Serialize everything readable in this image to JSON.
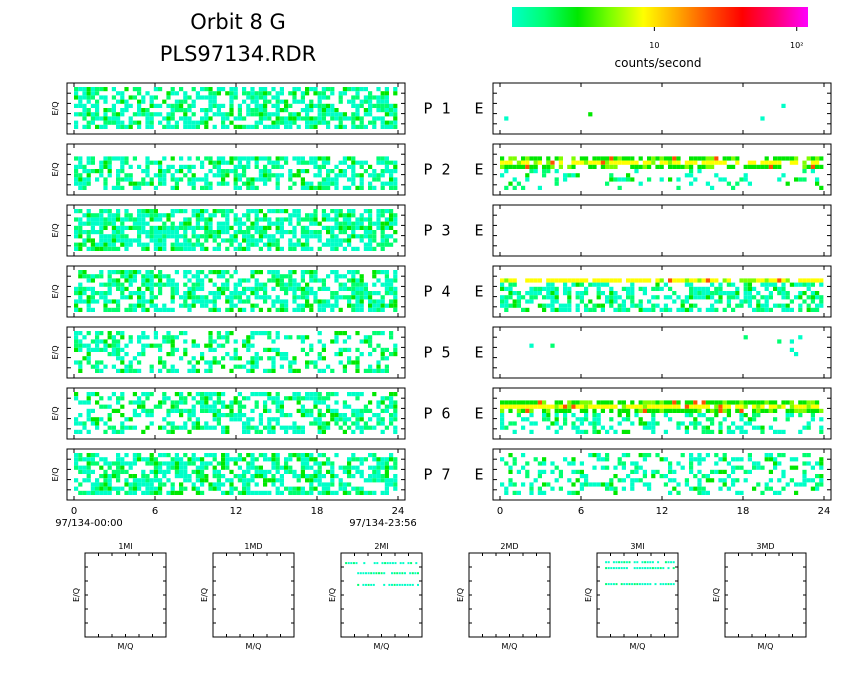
{
  "header": {
    "title_line1": "Orbit 8 G",
    "title_line2": "PLS97134.RDR"
  },
  "colorbar": {
    "stops": [
      "#00ffc8",
      "#00ff70",
      "#00e800",
      "#7dff00",
      "#ffff00",
      "#ffaa00",
      "#ff5000",
      "#ff0000",
      "#ff0070",
      "#ff00ff"
    ],
    "tick_labels": [
      "10",
      "10²"
    ],
    "tick_values": [
      10,
      100
    ],
    "range": [
      1,
      120
    ],
    "scale": "log",
    "label": "counts/second"
  },
  "chart_data": [
    {
      "type": "heatmap",
      "title": "",
      "ylabel": "E/Q",
      "xlim": [
        0,
        24
      ],
      "x_ticks": [
        0,
        6,
        12,
        18,
        24
      ],
      "x_start_label": "97/134-00:00",
      "x_end_label": "97/134-23:56",
      "panels": [
        {
          "row": "P 1",
          "density": 0.62,
          "level": 1.4,
          "bands": [
            0.0,
            1.0
          ]
        },
        {
          "row": "P 2",
          "density": 0.55,
          "level": 1.4,
          "bands": [
            0.0,
            0.85
          ]
        },
        {
          "row": "P 3",
          "density": 0.68,
          "level": 1.5,
          "bands": [
            0.0,
            1.0
          ]
        },
        {
          "row": "P 4",
          "density": 0.6,
          "level": 1.5,
          "bands": [
            0.0,
            1.0
          ]
        },
        {
          "row": "P 5",
          "density": 0.42,
          "level": 1.3,
          "bands": [
            0.0,
            1.0
          ]
        },
        {
          "row": "P 6",
          "density": 0.52,
          "level": 1.4,
          "bands": [
            0.0,
            1.0
          ]
        },
        {
          "row": "P 7",
          "density": 0.58,
          "level": 1.5,
          "bands": [
            0.0,
            1.0
          ]
        }
      ]
    },
    {
      "type": "heatmap",
      "title": "",
      "ylabel": "",
      "xlim": [
        0,
        24
      ],
      "x_ticks": [
        0,
        6,
        12,
        18,
        24
      ],
      "panels": [
        {
          "row": "E",
          "density": 0.01,
          "level": 1.2,
          "bands": [
            0.3,
            0.7
          ]
        },
        {
          "row": "E",
          "density": 0.7,
          "level": 1.9,
          "bands": [
            0.55,
            0.85
          ],
          "low_density": 0.22
        },
        {
          "row": "E",
          "density": 0.0,
          "level": 1.0,
          "bands": [
            0.0,
            0.0
          ]
        },
        {
          "row": "E",
          "density": 0.75,
          "level": 1.8,
          "bands": [
            0.72,
            0.88
          ],
          "low_density": 0.55
        },
        {
          "row": "E",
          "density": 0.03,
          "level": 1.3,
          "bands": [
            0.5,
            0.9
          ]
        },
        {
          "row": "E",
          "density": 0.85,
          "level": 1.9,
          "bands": [
            0.55,
            0.85
          ],
          "low_density": 0.4
        },
        {
          "row": "E",
          "density": 0.35,
          "level": 1.3,
          "bands": [
            0.0,
            1.0
          ]
        }
      ]
    },
    {
      "type": "scatter",
      "panels": [
        {
          "title": "1MI",
          "xlabel": "M/Q",
          "ylabel": "E/Q",
          "traces": []
        },
        {
          "title": "1MD",
          "xlabel": "M/Q",
          "ylabel": "E/Q",
          "traces": []
        },
        {
          "title": "2MI",
          "xlabel": "M/Q",
          "ylabel": "E/Q",
          "traces": [
            {
              "y": 0.88,
              "x0": 0.05,
              "x1": 0.95
            },
            {
              "y": 0.76,
              "x0": 0.2,
              "x1": 0.95
            },
            {
              "y": 0.62,
              "x0": 0.2,
              "x1": 0.95
            }
          ]
        },
        {
          "title": "2MD",
          "xlabel": "M/Q",
          "ylabel": "E/Q",
          "traces": []
        },
        {
          "title": "3MI",
          "xlabel": "M/Q",
          "ylabel": "E/Q",
          "traces": [
            {
              "y": 0.89,
              "x0": 0.1,
              "x1": 0.95
            },
            {
              "y": 0.82,
              "x0": 0.1,
              "x1": 0.95
            },
            {
              "y": 0.63,
              "x0": 0.1,
              "x1": 0.95
            }
          ]
        },
        {
          "title": "3MD",
          "xlabel": "M/Q",
          "ylabel": "E/Q",
          "traces": []
        }
      ]
    }
  ]
}
